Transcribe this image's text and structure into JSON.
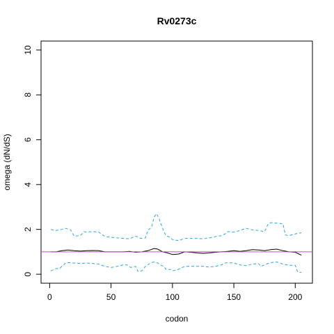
{
  "chart_data": {
    "type": "line",
    "title": "Rv0273c",
    "xlabel": "codon",
    "ylabel": "omega (dN/dS)",
    "xlim": [
      -7,
      214
    ],
    "ylim": [
      -0.4,
      10.4
    ],
    "xticks": [
      0,
      50,
      100,
      150,
      200
    ],
    "yticks": [
      0,
      2,
      4,
      6,
      8,
      10
    ],
    "grid": false,
    "colors": {
      "estimate": "#000000",
      "ci": "#29a3e0",
      "reference": "#cc44cc"
    },
    "reference_line": {
      "y": 1
    },
    "series": [
      {
        "role": "estimate",
        "style": "solid",
        "x": [
          1,
          5,
          10,
          15,
          20,
          25,
          30,
          35,
          40,
          45,
          50,
          55,
          60,
          65,
          70,
          75,
          80,
          85,
          88,
          92,
          96,
          100,
          105,
          110,
          115,
          120,
          125,
          130,
          135,
          140,
          145,
          150,
          155,
          160,
          165,
          170,
          175,
          180,
          185,
          190,
          195,
          200,
          205
        ],
        "y": [
          1.0,
          1.0,
          1.05,
          1.08,
          1.05,
          1.03,
          1.05,
          1.06,
          1.05,
          1.0,
          1.0,
          1.0,
          1.0,
          1.02,
          0.98,
          1.0,
          1.05,
          1.15,
          1.12,
          1.0,
          0.95,
          0.88,
          0.9,
          1.0,
          0.98,
          0.95,
          0.93,
          0.95,
          0.98,
          1.0,
          1.02,
          1.05,
          1.02,
          1.05,
          1.1,
          1.08,
          1.05,
          1.1,
          1.12,
          1.05,
          1.0,
          0.98,
          0.85
        ]
      },
      {
        "role": "upper",
        "style": "dashed",
        "x": [
          1,
          5,
          10,
          13,
          17,
          20,
          25,
          28,
          30,
          35,
          40,
          42,
          45,
          50,
          55,
          60,
          65,
          70,
          74,
          78,
          80,
          83,
          85,
          87,
          89,
          91,
          93,
          95,
          98,
          100,
          105,
          110,
          115,
          120,
          125,
          130,
          135,
          140,
          143,
          145,
          150,
          155,
          160,
          165,
          170,
          175,
          178,
          180,
          185,
          190,
          192,
          195,
          200,
          205
        ],
        "y": [
          2.0,
          1.95,
          2.0,
          2.05,
          1.98,
          1.7,
          1.72,
          1.9,
          1.88,
          1.9,
          1.88,
          1.8,
          1.68,
          1.65,
          1.62,
          1.6,
          1.58,
          1.7,
          1.6,
          1.62,
          1.95,
          2.1,
          2.55,
          2.7,
          2.5,
          2.2,
          1.9,
          1.7,
          1.65,
          1.55,
          1.5,
          1.6,
          1.6,
          1.6,
          1.58,
          1.62,
          1.68,
          1.72,
          1.8,
          1.9,
          1.88,
          1.95,
          2.05,
          1.98,
          1.95,
          1.9,
          2.25,
          2.3,
          2.28,
          2.25,
          1.75,
          1.72,
          1.8,
          1.85
        ]
      },
      {
        "role": "lower",
        "style": "dashed",
        "x": [
          1,
          5,
          8,
          10,
          13,
          15,
          20,
          25,
          30,
          35,
          40,
          45,
          50,
          55,
          60,
          63,
          66,
          70,
          72,
          75,
          78,
          82,
          85,
          88,
          90,
          93,
          95,
          98,
          100,
          105,
          110,
          115,
          120,
          125,
          130,
          135,
          140,
          143,
          145,
          150,
          155,
          160,
          165,
          170,
          172,
          175,
          180,
          185,
          190,
          195,
          200,
          202,
          205
        ],
        "y": [
          0.15,
          0.25,
          0.25,
          0.35,
          0.5,
          0.52,
          0.5,
          0.48,
          0.5,
          0.48,
          0.45,
          0.35,
          0.3,
          0.35,
          0.42,
          0.42,
          0.3,
          0.35,
          0.12,
          0.15,
          0.35,
          0.5,
          0.55,
          0.5,
          0.42,
          0.35,
          0.2,
          0.22,
          0.15,
          0.22,
          0.35,
          0.35,
          0.35,
          0.35,
          0.32,
          0.35,
          0.42,
          0.5,
          0.52,
          0.5,
          0.42,
          0.38,
          0.45,
          0.48,
          0.35,
          0.42,
          0.52,
          0.55,
          0.45,
          0.4,
          0.4,
          0.1,
          0.08
        ]
      }
    ]
  }
}
